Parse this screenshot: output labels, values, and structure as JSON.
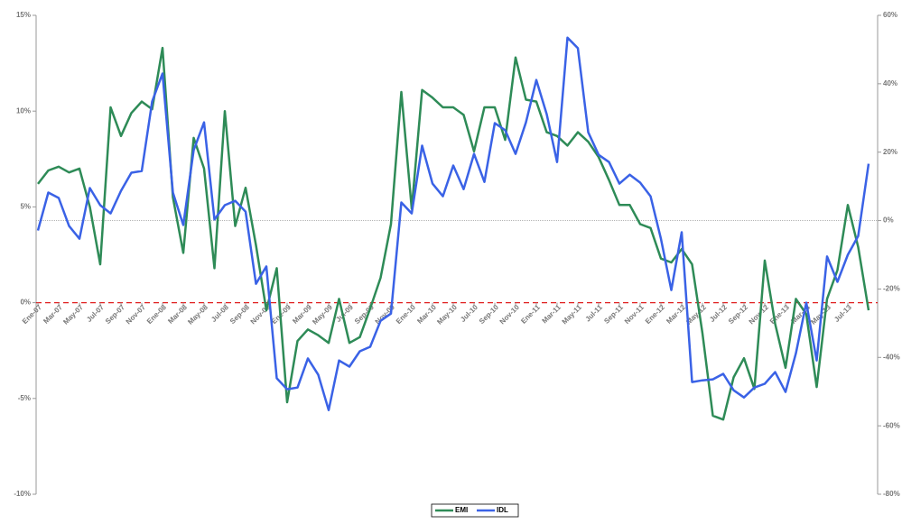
{
  "chart_data": {
    "type": "line",
    "categories": [
      "Ene-07",
      null,
      "Mar-07",
      null,
      "May-07",
      null,
      "Jul-07",
      null,
      "Sep-07",
      null,
      "Nov-07",
      null,
      "Ene-08",
      null,
      "Mar-08",
      null,
      "May-08",
      null,
      "Jul-08",
      null,
      "Sep-08",
      null,
      "Nov-08",
      null,
      "Ene-09",
      null,
      "Mar-09",
      null,
      "May-09",
      null,
      "Jul-09",
      null,
      "Sep-09",
      null,
      "Nov-09",
      null,
      "Ene-10",
      null,
      "Mar-10",
      null,
      "May-10",
      null,
      "Jul-10",
      null,
      "Sep-10",
      null,
      "Nov-10",
      null,
      "Ene-11",
      null,
      "Mar-11",
      null,
      "May-11",
      null,
      "Jul-11",
      null,
      "Sep-11",
      null,
      "Nov-11",
      null,
      "Ene-12",
      null,
      "Mar-12",
      null,
      "May-12",
      null,
      "Jul-12",
      null,
      "Sep-12",
      null,
      "Nov-12",
      null,
      "Ene-13",
      null,
      "Mar-13",
      null,
      "May-13",
      null,
      "Jul-13",
      null,
      null
    ],
    "series": [
      {
        "name": "EMI",
        "color": "#2e8b57",
        "axis": "y",
        "values": [
          6.2,
          6.9,
          7.1,
          6.8,
          7.0,
          5.0,
          2.0,
          10.2,
          8.7,
          9.9,
          10.5,
          10.1,
          13.3,
          5.5,
          2.6,
          8.6,
          7.0,
          1.8,
          10.0,
          4.0,
          6.0,
          3.0,
          -0.4,
          1.8,
          -5.2,
          -2.0,
          -1.4,
          -1.7,
          -2.1,
          0.2,
          -2.1,
          -1.8,
          -0.3,
          1.3,
          4.1,
          11.0,
          4.9,
          11.1,
          10.7,
          10.2,
          10.2,
          9.8,
          7.9,
          10.2,
          10.2,
          8.5,
          12.8,
          10.6,
          10.5,
          8.9,
          8.7,
          8.2,
          8.9,
          8.4,
          7.6,
          6.4,
          5.1,
          5.1,
          4.1,
          3.9,
          2.3,
          2.1,
          2.8,
          2.0,
          -1.6,
          -5.9,
          -6.1,
          -3.9,
          -2.9,
          -4.5,
          2.2,
          -1.1,
          -3.4,
          0.2,
          -0.6,
          -4.4,
          0.2,
          1.7,
          5.1,
          2.9,
          -0.4
        ]
      },
      {
        "name": "IDL",
        "color": "#3a62e6",
        "axis": "y2",
        "values": [
          -2.9,
          8.2,
          6.6,
          -1.6,
          -5.3,
          9.5,
          4.5,
          2.1,
          8.7,
          14.0,
          14.5,
          34.8,
          43.0,
          8.2,
          -1.3,
          20.6,
          28.7,
          0.3,
          4.5,
          5.8,
          2.6,
          -18.5,
          -13.4,
          -46.1,
          -49.3,
          -48.8,
          -40.3,
          -45.1,
          -55.4,
          -40.9,
          -42.7,
          -38.2,
          -36.9,
          -29.3,
          -27.2,
          5.3,
          2.1,
          21.9,
          10.8,
          7.1,
          16.1,
          9.2,
          19.5,
          11.3,
          28.5,
          26.4,
          19.5,
          28.7,
          41.1,
          31.1,
          17.1,
          53.5,
          50.4,
          25.8,
          19.2,
          17.1,
          10.8,
          13.4,
          11.1,
          7.1,
          -5.3,
          -20.3,
          -3.4,
          -47.2,
          -46.7,
          -46.4,
          -44.8,
          -49.6,
          -51.7,
          -48.8,
          -47.7,
          -44.3,
          -50.1,
          -38.8,
          -24.0,
          -40.9,
          -10.5,
          -17.9,
          -10.0,
          -4.5,
          16.6
        ]
      }
    ],
    "ylim": [
      -10,
      15
    ],
    "yticks": [
      {
        "value": -10,
        "label": "-10%"
      },
      {
        "value": -5,
        "label": "-5%"
      },
      {
        "value": 0,
        "label": "0%"
      },
      {
        "value": 5,
        "label": "5%"
      },
      {
        "value": 10,
        "label": "10%"
      },
      {
        "value": 15,
        "label": "15%"
      }
    ],
    "y2lim": [
      -80,
      60
    ],
    "y2ticks": [
      {
        "value": -80,
        "label": "-80%"
      },
      {
        "value": -60,
        "label": "-60%"
      },
      {
        "value": -40,
        "label": "-40%"
      },
      {
        "value": -20,
        "label": "-20%"
      },
      {
        "value": 0,
        "label": "0%"
      },
      {
        "value": 20,
        "label": "20%"
      },
      {
        "value": 40,
        "label": "40%"
      },
      {
        "value": 60,
        "label": "60%"
      }
    ],
    "reference_lines": [
      {
        "axis": "y",
        "value": 0,
        "color": "#e02020",
        "style": "dashed"
      },
      {
        "axis": "y2",
        "value": 0,
        "color": "#aaaaaa",
        "style": "dotted"
      }
    ],
    "legend": "bottom"
  }
}
